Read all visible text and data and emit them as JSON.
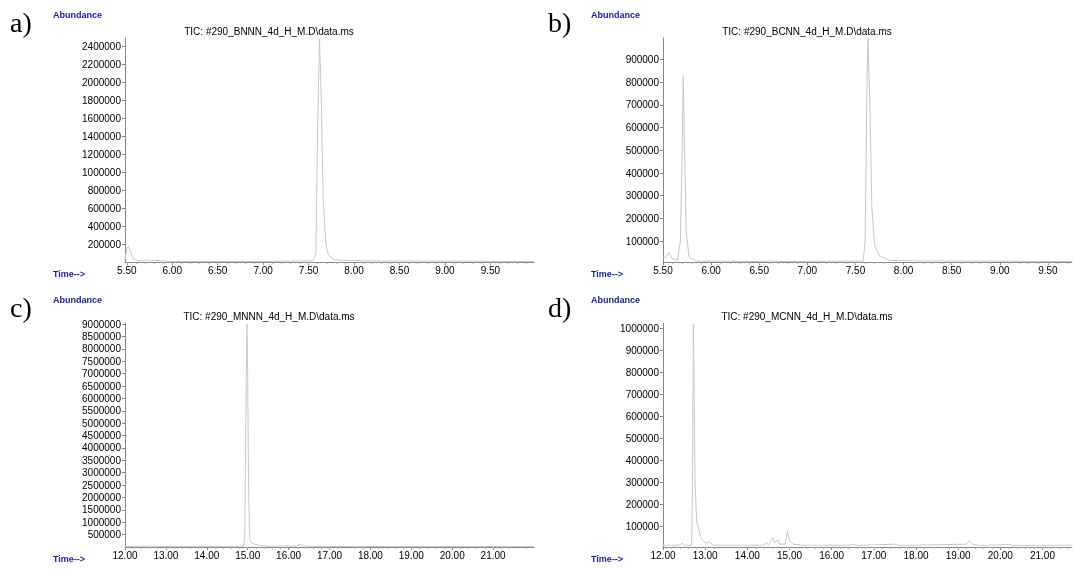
{
  "chart_data": [
    {
      "type": "line",
      "title": "TIC: #290_BNNN_4d_H_M.D\\data.ms",
      "xlabel": "Time-->",
      "ylabel": "Abundance",
      "annotations": [
        "a)"
      ],
      "color": "#c8c8c8",
      "marker": "none",
      "grid": false,
      "x": [
        5.48,
        5.5,
        5.52,
        5.54,
        5.57,
        5.62,
        5.7,
        5.72,
        5.75,
        5.9,
        6.0,
        7.0,
        7.55,
        7.58,
        7.6,
        7.62,
        7.64,
        7.66,
        7.69,
        7.72,
        7.78,
        7.9,
        9.98
      ],
      "values": [
        30000,
        150000,
        180000,
        120000,
        40000,
        20000,
        20000,
        30000,
        20000,
        20000,
        10000,
        10000,
        20000,
        100000,
        1500000,
        2480000,
        1800000,
        700000,
        200000,
        80000,
        30000,
        20000,
        10000
      ],
      "xlim": [
        5.48,
        9.98
      ],
      "ylim": [
        5000,
        2490000
      ],
      "xticks": [
        {
          "value": 5.5,
          "label": "5.50"
        },
        {
          "value": 6,
          "label": "6.00"
        },
        {
          "value": 6.5,
          "label": "6.50"
        },
        {
          "value": 7,
          "label": "7.00"
        },
        {
          "value": 7.5,
          "label": "7.50"
        },
        {
          "value": 8,
          "label": "8.00"
        },
        {
          "value": 8.5,
          "label": "8.50"
        },
        {
          "value": 9,
          "label": "9.00"
        },
        {
          "value": 9.5,
          "label": "9.50"
        }
      ],
      "yticks": [
        200000,
        400000,
        600000,
        800000,
        1000000,
        1200000,
        1400000,
        1600000,
        1800000,
        2000000,
        2200000,
        2400000
      ]
    },
    {
      "type": "line",
      "title": "TIC: #290_BCNN_4d_H_M.D\\data.ms",
      "xlabel": "Time-->",
      "ylabel": "Abundance",
      "annotations": [
        "b)"
      ],
      "color": "#c8c8c8",
      "marker": "none",
      "grid": false,
      "x": [
        5.5,
        5.53,
        5.56,
        5.59,
        5.65,
        5.68,
        5.7,
        5.71,
        5.72,
        5.74,
        5.77,
        5.85,
        6.5,
        6.65,
        6.7,
        7.58,
        7.6,
        7.62,
        7.63,
        7.65,
        7.67,
        7.7,
        7.75,
        7.85,
        8.1,
        9.75
      ],
      "values": [
        30000,
        30000,
        50000,
        25000,
        15000,
        100000,
        500000,
        830000,
        600000,
        150000,
        30000,
        12000,
        10000,
        13000,
        10000,
        12000,
        100000,
        800000,
        990000,
        700000,
        250000,
        80000,
        35000,
        15000,
        13000,
        10000
      ],
      "xlim": [
        5.5,
        9.75
      ],
      "ylim": [
        8000,
        995000
      ],
      "xticks": [
        {
          "value": 5.5,
          "label": "5.50"
        },
        {
          "value": 6,
          "label": "6.00"
        },
        {
          "value": 6.5,
          "label": "6.50"
        },
        {
          "value": 7,
          "label": "7.00"
        },
        {
          "value": 7.5,
          "label": "7.50"
        },
        {
          "value": 8,
          "label": "8.00"
        },
        {
          "value": 8.5,
          "label": "8.50"
        },
        {
          "value": 9,
          "label": "9.00"
        },
        {
          "value": 9.5,
          "label": "9.50"
        }
      ],
      "yticks": [
        100000,
        200000,
        300000,
        400000,
        500000,
        600000,
        700000,
        800000,
        900000
      ]
    },
    {
      "type": "line",
      "title": "TIC: #290_MNNN_4d_H_M.D\\data.ms",
      "xlabel": "Time-->",
      "ylabel": "Abundance",
      "annotations": [
        "c)"
      ],
      "color": "#c8c8c8",
      "marker": "none",
      "grid": false,
      "x": [
        12,
        12.7,
        12.8,
        14.9,
        14.93,
        14.96,
        14.98,
        15.0,
        15.02,
        15.05,
        15.1,
        15.3,
        15.5,
        15.8,
        16.2,
        16.28,
        16.35,
        17,
        22
      ],
      "values": [
        20000,
        40000,
        20000,
        30000,
        500000,
        6000000,
        9000000,
        7000000,
        2500000,
        300000,
        150000,
        60000,
        30000,
        40000,
        40000,
        120000,
        40000,
        20000,
        20000
      ],
      "xlim": [
        12,
        22
      ],
      "ylim": [
        0,
        9050000
      ],
      "xticks": [
        {
          "value": 12,
          "label": "12.00"
        },
        {
          "value": 13,
          "label": "13.00"
        },
        {
          "value": 14,
          "label": "14.00"
        },
        {
          "value": 15,
          "label": "15.00"
        },
        {
          "value": 16,
          "label": "16.00"
        },
        {
          "value": 17,
          "label": "17.00"
        },
        {
          "value": 18,
          "label": "18.00"
        },
        {
          "value": 19,
          "label": "19.00"
        },
        {
          "value": 20,
          "label": "20.00"
        },
        {
          "value": 21,
          "label": "21.00"
        }
      ],
      "yticks": [
        500000,
        1000000,
        1500000,
        2000000,
        2500000,
        3000000,
        3500000,
        4000000,
        4500000,
        5000000,
        5500000,
        6000000,
        6500000,
        7000000,
        7500000,
        8000000,
        8500000,
        9000000
      ]
    },
    {
      "type": "line",
      "title": "TIC: #290_MCNN_4d_H_M.D\\data.ms",
      "xlabel": "Time-->",
      "ylabel": "Abundance",
      "annotations": [
        "d)"
      ],
      "color": "#c8c8c8",
      "marker": "none",
      "grid": false,
      "x": [
        12,
        12.4,
        12.45,
        12.5,
        12.68,
        12.7,
        12.72,
        12.74,
        12.76,
        12.8,
        12.9,
        13.0,
        13.1,
        13.2,
        14.4,
        14.45,
        14.5,
        14.55,
        14.6,
        14.65,
        14.72,
        14.77,
        14.9,
        14.95,
        15.0,
        15.1,
        15.3,
        16.4,
        16.5,
        16.6,
        17.5,
        17.6,
        19.2,
        19.25,
        19.35,
        19.5,
        20.2,
        20.3,
        21.7
      ],
      "values": [
        15000,
        15000,
        25000,
        15000,
        15000,
        300000,
        1020000,
        700000,
        300000,
        120000,
        50000,
        25000,
        30000,
        15000,
        15000,
        30000,
        15000,
        30000,
        50000,
        25000,
        40000,
        20000,
        20000,
        80000,
        35000,
        20000,
        15000,
        15000,
        20000,
        14000,
        20000,
        14000,
        20000,
        35000,
        20000,
        14000,
        18000,
        14000,
        15000
      ],
      "xlim": [
        12,
        21.7
      ],
      "ylim": [
        7000,
        1026000
      ],
      "xticks": [
        {
          "value": 12,
          "label": "12.00"
        },
        {
          "value": 13,
          "label": "13.00"
        },
        {
          "value": 14,
          "label": "14.00"
        },
        {
          "value": 15,
          "label": "15.00"
        },
        {
          "value": 16,
          "label": "16.00"
        },
        {
          "value": 17,
          "label": "17.00"
        },
        {
          "value": 18,
          "label": "18.00"
        },
        {
          "value": 19,
          "label": "19.00"
        },
        {
          "value": 20,
          "label": "20.00"
        },
        {
          "value": 21,
          "label": "21.00"
        }
      ],
      "yticks": [
        100000,
        200000,
        300000,
        400000,
        500000,
        600000,
        700000,
        800000,
        900000,
        1000000
      ]
    }
  ]
}
